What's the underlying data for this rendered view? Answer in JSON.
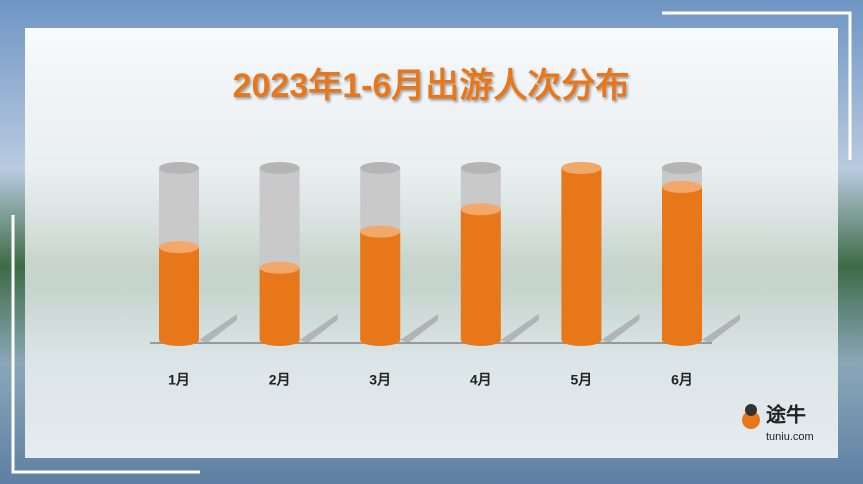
{
  "chart_data": {
    "type": "bar",
    "title": "2023年1-6月出游人次分布",
    "categories": [
      "1月",
      "2月",
      "3月",
      "4月",
      "5月",
      "6月"
    ],
    "values": [
      54,
      42,
      63,
      76,
      100,
      89
    ],
    "color": "#e8771a",
    "track_color": "#c9c9c9",
    "ylim": [
      0,
      100
    ]
  },
  "logo": {
    "name": "途牛",
    "domain": "tuniu.com"
  }
}
